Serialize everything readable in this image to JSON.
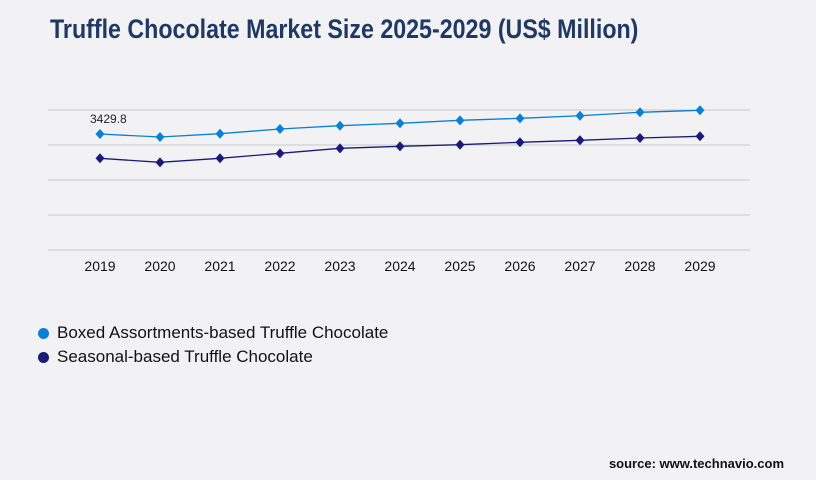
{
  "chart_data": {
    "type": "line",
    "title": "Truffle Chocolate Market Size 2025-2029 (US$ Million)",
    "xlabel": "",
    "ylabel": "",
    "categories": [
      "2019",
      "2020",
      "2021",
      "2022",
      "2023",
      "2024",
      "2025",
      "2026",
      "2027",
      "2028",
      "2029"
    ],
    "ylim": [
      0,
      4140
    ],
    "grid": true,
    "legend_placement": "bottom-left",
    "series": [
      {
        "name": "Boxed Assortments-based Truffle Chocolate",
        "color": "#0a7fd6",
        "values": [
          3429.8,
          3341,
          3439,
          3578,
          3676,
          3747,
          3835,
          3894,
          3971,
          4072,
          4131
        ]
      },
      {
        "name": "Seasonal-based Truffle Chocolate",
        "color": "#1a1a7a",
        "values": [
          2712,
          2593,
          2712,
          2859,
          3007,
          3066,
          3114,
          3185,
          3244,
          3312,
          3362
        ]
      }
    ],
    "annotations": [
      {
        "series": 0,
        "index": 0,
        "text": "3429.8"
      }
    ]
  },
  "source": "source: www.technavio.com"
}
